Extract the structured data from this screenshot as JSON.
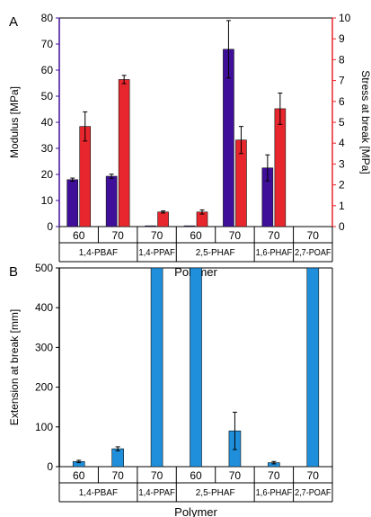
{
  "colors": {
    "modulus": "#3f0f9a",
    "stress": "#e8262d",
    "extension": "#1f8fdb",
    "left_axis": "#3f0f9a",
    "right_axis": "#e8262d",
    "frame": "#000000"
  },
  "chart_data": [
    {
      "panel_label": "A",
      "type": "bar",
      "xlabel": "Polymer",
      "ylabel": "Modulus [MPa]",
      "y2label": "Stress at break [MPa]",
      "ylim": [
        0,
        80
      ],
      "yticks": [
        0,
        10,
        20,
        30,
        40,
        50,
        60,
        70,
        80
      ],
      "y2lim": [
        0,
        10
      ],
      "y2ticks": [
        0,
        1,
        2,
        3,
        4,
        5,
        6,
        7,
        8,
        9,
        10
      ],
      "categories": [
        "60",
        "70",
        "70",
        "60",
        "70",
        "70",
        "70"
      ],
      "groups": [
        {
          "label": "1,4-PBAF",
          "span": 2
        },
        {
          "label": "1,4-PPAF",
          "span": 1
        },
        {
          "label": "2,5-PHAF",
          "span": 2
        },
        {
          "label": "1,6-PHAF",
          "span": 1
        },
        {
          "label": "2,7-POAF",
          "span": 1
        }
      ],
      "series": [
        {
          "axis": "left",
          "values": [
            18,
            19.3,
            0.3,
            0.3,
            68,
            22.5,
            0
          ],
          "errors": [
            0.6,
            0.8,
            0,
            0,
            11,
            5,
            0
          ]
        },
        {
          "axis": "right",
          "values": [
            4.8,
            7.05,
            0.7,
            0.7,
            4.15,
            5.65,
            0
          ],
          "errors": [
            0.7,
            0.2,
            0.05,
            0.1,
            0.65,
            0.75,
            0
          ]
        }
      ]
    },
    {
      "panel_label": "B",
      "type": "bar",
      "xlabel": "Polymer",
      "ylabel": "Extension at break [mm]",
      "ylim": [
        0,
        500
      ],
      "yticks": [
        0,
        100,
        200,
        300,
        400,
        500
      ],
      "categories": [
        "60",
        "70",
        "70",
        "60",
        "70",
        "70",
        "70"
      ],
      "groups": [
        {
          "label": "1,4-PBAF",
          "span": 2
        },
        {
          "label": "1,4-PPAF",
          "span": 1
        },
        {
          "label": "2,5-PHAF",
          "span": 2
        },
        {
          "label": "1,6-PHAF",
          "span": 1
        },
        {
          "label": "2,7-POAF",
          "span": 1
        }
      ],
      "series": [
        {
          "values": [
            13,
            45,
            500,
            500,
            90,
            10,
            500
          ],
          "errors": [
            3,
            5,
            0,
            0,
            47,
            3,
            0
          ]
        }
      ]
    }
  ]
}
